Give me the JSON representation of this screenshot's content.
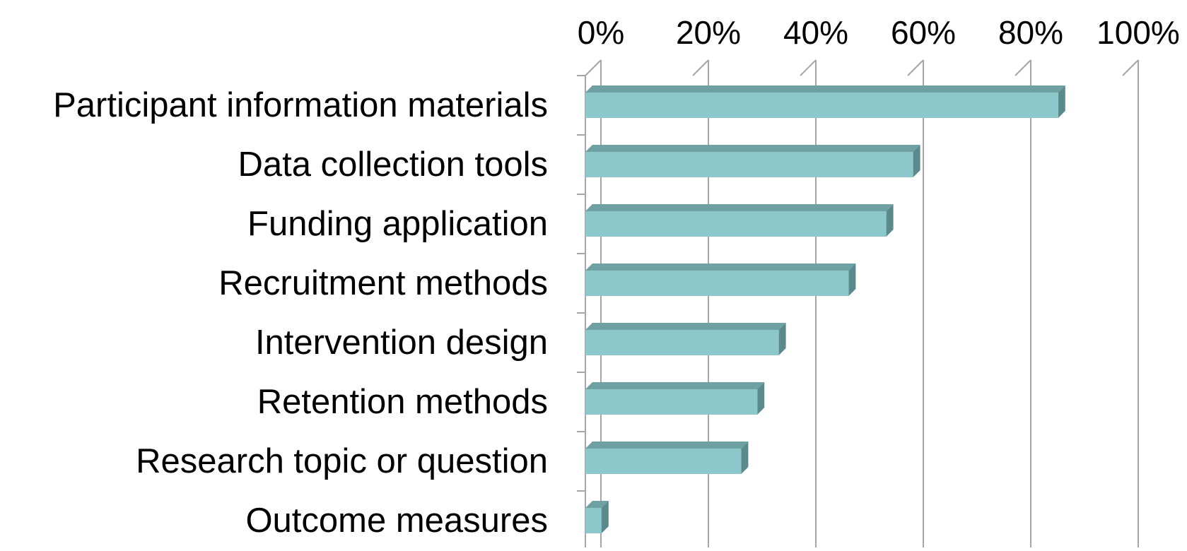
{
  "chart_data": {
    "type": "bar",
    "orientation": "horizontal",
    "style": "3d",
    "title": "",
    "xlabel": "",
    "ylabel": "",
    "categories": [
      "Participant information materials",
      "Data collection tools",
      "Funding application",
      "Recruitment methods",
      "Intervention design",
      "Retention methods",
      "Research topic or question",
      "Outcome measures"
    ],
    "series": [
      {
        "values": [
          88,
          61,
          56,
          49,
          36,
          32,
          29,
          3
        ]
      }
    ],
    "xlim": [
      0,
      100
    ],
    "ticks": [
      "0%",
      "20%",
      "40%",
      "60%",
      "80%",
      "100%"
    ],
    "x_axis_position": "top",
    "grid": true,
    "legend": "none",
    "colors": {
      "bar_front": "#8CC8CB",
      "bar_top": "#6FA0A3",
      "bar_side": "#5B8A8C",
      "grid": "#A6A6A6",
      "text": "#000000"
    }
  }
}
